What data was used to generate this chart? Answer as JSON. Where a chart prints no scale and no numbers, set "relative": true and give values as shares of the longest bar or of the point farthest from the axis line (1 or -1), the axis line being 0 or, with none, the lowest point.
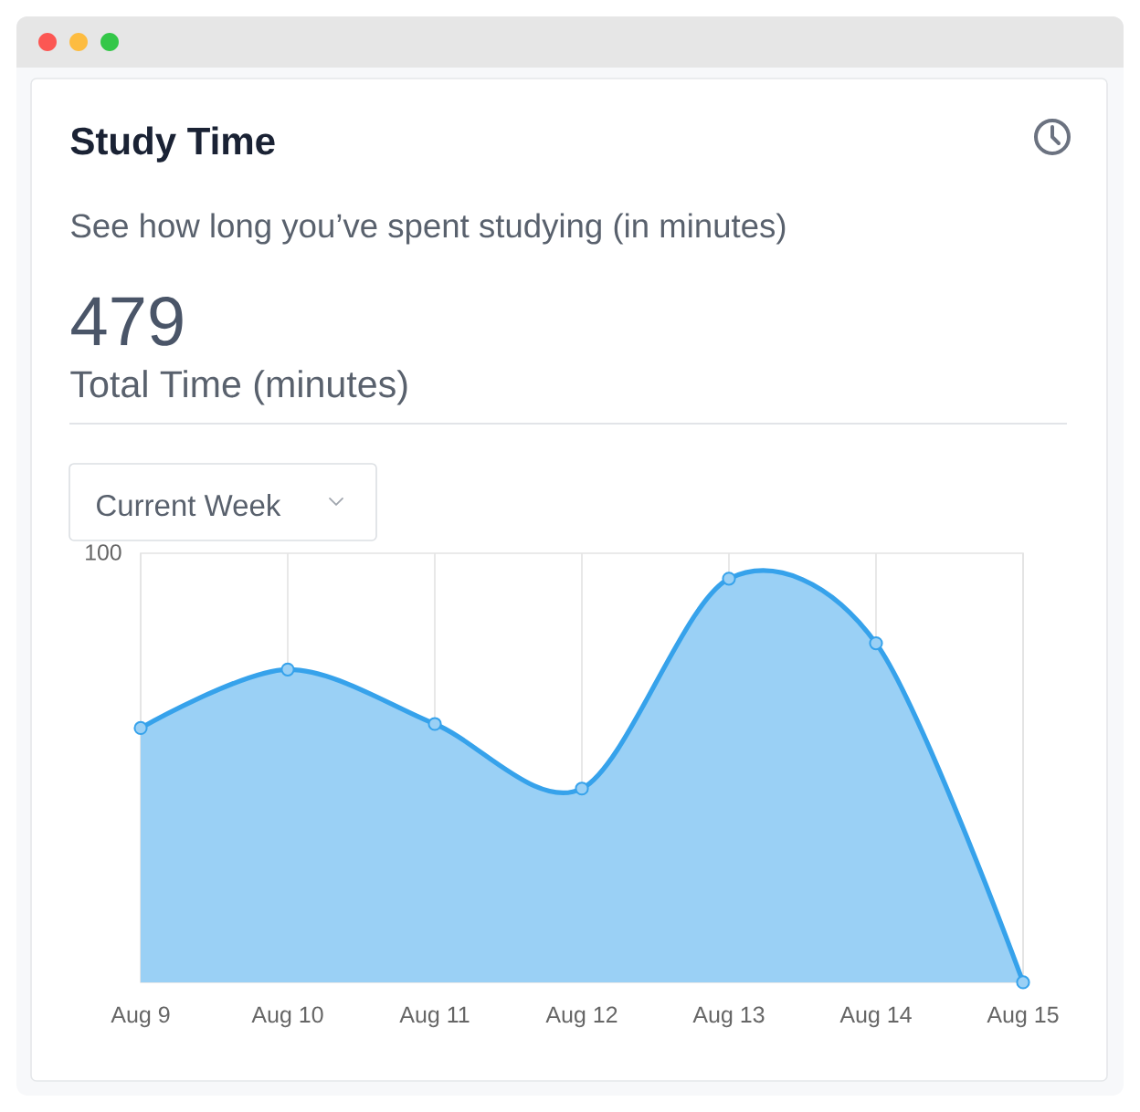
{
  "chart_data": {
    "type": "area",
    "title": "Study Time",
    "subtitle": "See how long you’ve spent studying (in minutes)",
    "annotations": [
      "479",
      "Total Time (minutes)",
      "Current Week",
      "100"
    ],
    "categories": [
      "Aug 9",
      "Aug 10",
      "Aug 11",
      "Aug 12",
      "Aug 13",
      "Aug 14",
      "Aug 15"
    ],
    "values": [
      0.63,
      0.775,
      0.64,
      0.48,
      1,
      0.84,
      0
    ],
    "relative": true,
    "color": "#36a2eb",
    "marker": "circle",
    "line_style": "solid",
    "grid": "x"
  }
}
